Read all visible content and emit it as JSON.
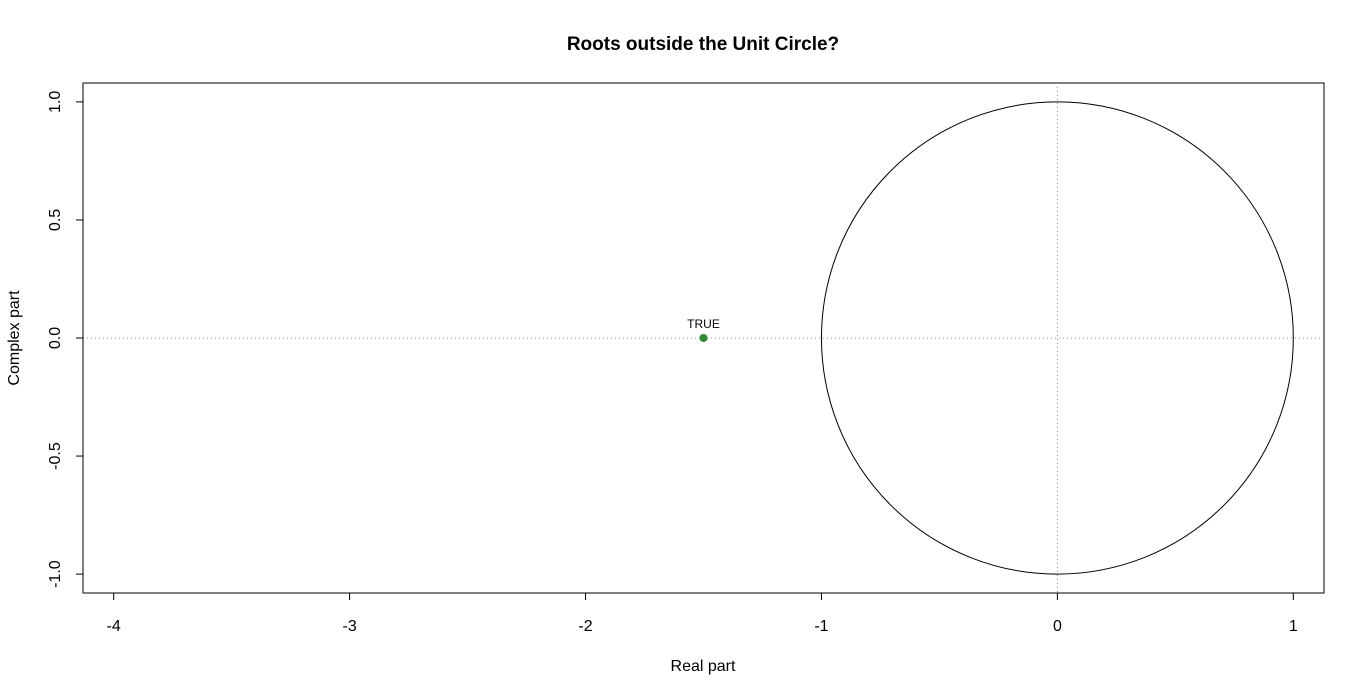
{
  "chart_data": {
    "type": "scatter",
    "title": "Roots outside the Unit Circle?",
    "xlabel": "Real part",
    "ylabel": "Complex part",
    "xlim": [
      -4.13,
      1.13
    ],
    "ylim": [
      -1.08,
      1.08
    ],
    "x_ticks": [
      -4,
      -3,
      -2,
      -1,
      0,
      1
    ],
    "x_tick_labels": [
      "-4",
      "-3",
      "-2",
      "-1",
      "0",
      "1"
    ],
    "y_ticks": [
      -1.0,
      -0.5,
      0.0,
      0.5,
      1.0
    ],
    "y_tick_labels": [
      "-1.0",
      "-0.5",
      "0.0",
      "0.5",
      "1.0"
    ],
    "grid": false,
    "reference_lines": {
      "horizontal_at": 0,
      "vertical_at": 0,
      "style": "dotted",
      "color": "#999999"
    },
    "unit_circle": {
      "center": [
        0,
        0
      ],
      "radius": 1,
      "color": "#000000"
    },
    "points": [
      {
        "x": -1.5,
        "y": 0.0,
        "label": "TRUE",
        "color": "#2e8b2e"
      }
    ]
  }
}
